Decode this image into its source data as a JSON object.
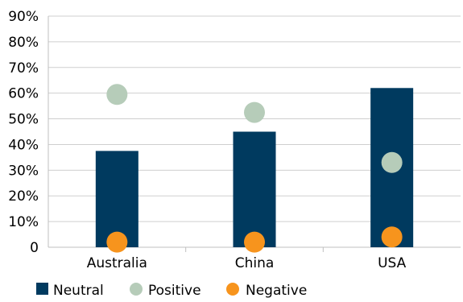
{
  "chart_data": {
    "type": "bar",
    "categories": [
      "Australia",
      "China",
      "USA"
    ],
    "ylim": [
      0,
      90
    ],
    "y_ticks": [
      0,
      10,
      20,
      30,
      40,
      50,
      60,
      70,
      80,
      90
    ],
    "y_tick_labels": [
      "0",
      "10%",
      "20%",
      "30%",
      "40%",
      "50%",
      "60%",
      "70%",
      "80%",
      "90%"
    ],
    "grid": true,
    "legend_position": "bottom-left",
    "series": [
      {
        "name": "Neutral",
        "mark": "bar",
        "color": "#003a5f",
        "values": [
          37.5,
          45,
          62
        ]
      },
      {
        "name": "Positive",
        "mark": "dot",
        "color": "#b6ccb9",
        "values": [
          59.5,
          52.5,
          33
        ]
      },
      {
        "name": "Negative",
        "mark": "dot",
        "color": "#f7941d",
        "values": [
          2,
          2,
          4
        ]
      }
    ]
  }
}
